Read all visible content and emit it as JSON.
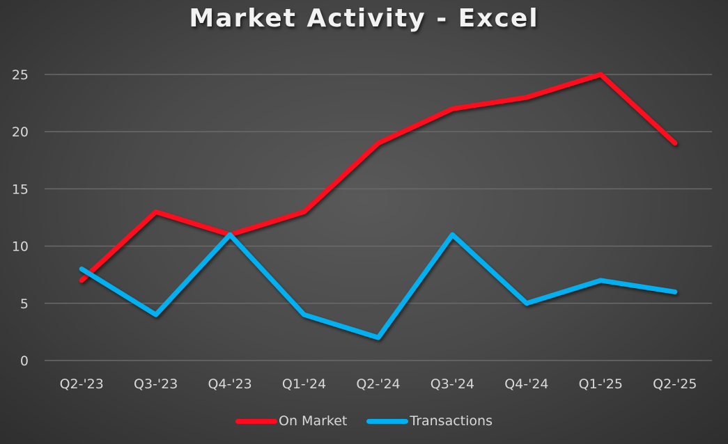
{
  "chart_data": {
    "type": "line",
    "title": "Market Activity - Excel",
    "xlabel": "",
    "ylabel": "",
    "categories": [
      "Q2-'23",
      "Q3-'23",
      "Q4-'23",
      "Q1-'24",
      "Q2-'24",
      "Q3-'24",
      "Q4-'24",
      "Q1-'25",
      "Q2-'25"
    ],
    "series": [
      {
        "name": "On Market",
        "color": "#ff0a1e",
        "values": [
          7,
          13,
          11,
          13,
          19,
          22,
          23,
          25,
          19
        ]
      },
      {
        "name": "Transactions",
        "color": "#00b0f0",
        "values": [
          8,
          4,
          11,
          4,
          2,
          11,
          5,
          7,
          6
        ]
      }
    ],
    "ylim": [
      0,
      25
    ],
    "yticks": [
      0,
      5,
      10,
      15,
      20,
      25
    ],
    "grid": true,
    "legend_position": "bottom"
  },
  "legend": {
    "items": [
      {
        "label": "On Market",
        "color": "#ff0a1e"
      },
      {
        "label": "Transactions",
        "color": "#00b0f0"
      }
    ]
  },
  "colors": {
    "background": "#4a4a4a",
    "gridline": "#6a6a6a",
    "text": "#d9d9d9"
  }
}
